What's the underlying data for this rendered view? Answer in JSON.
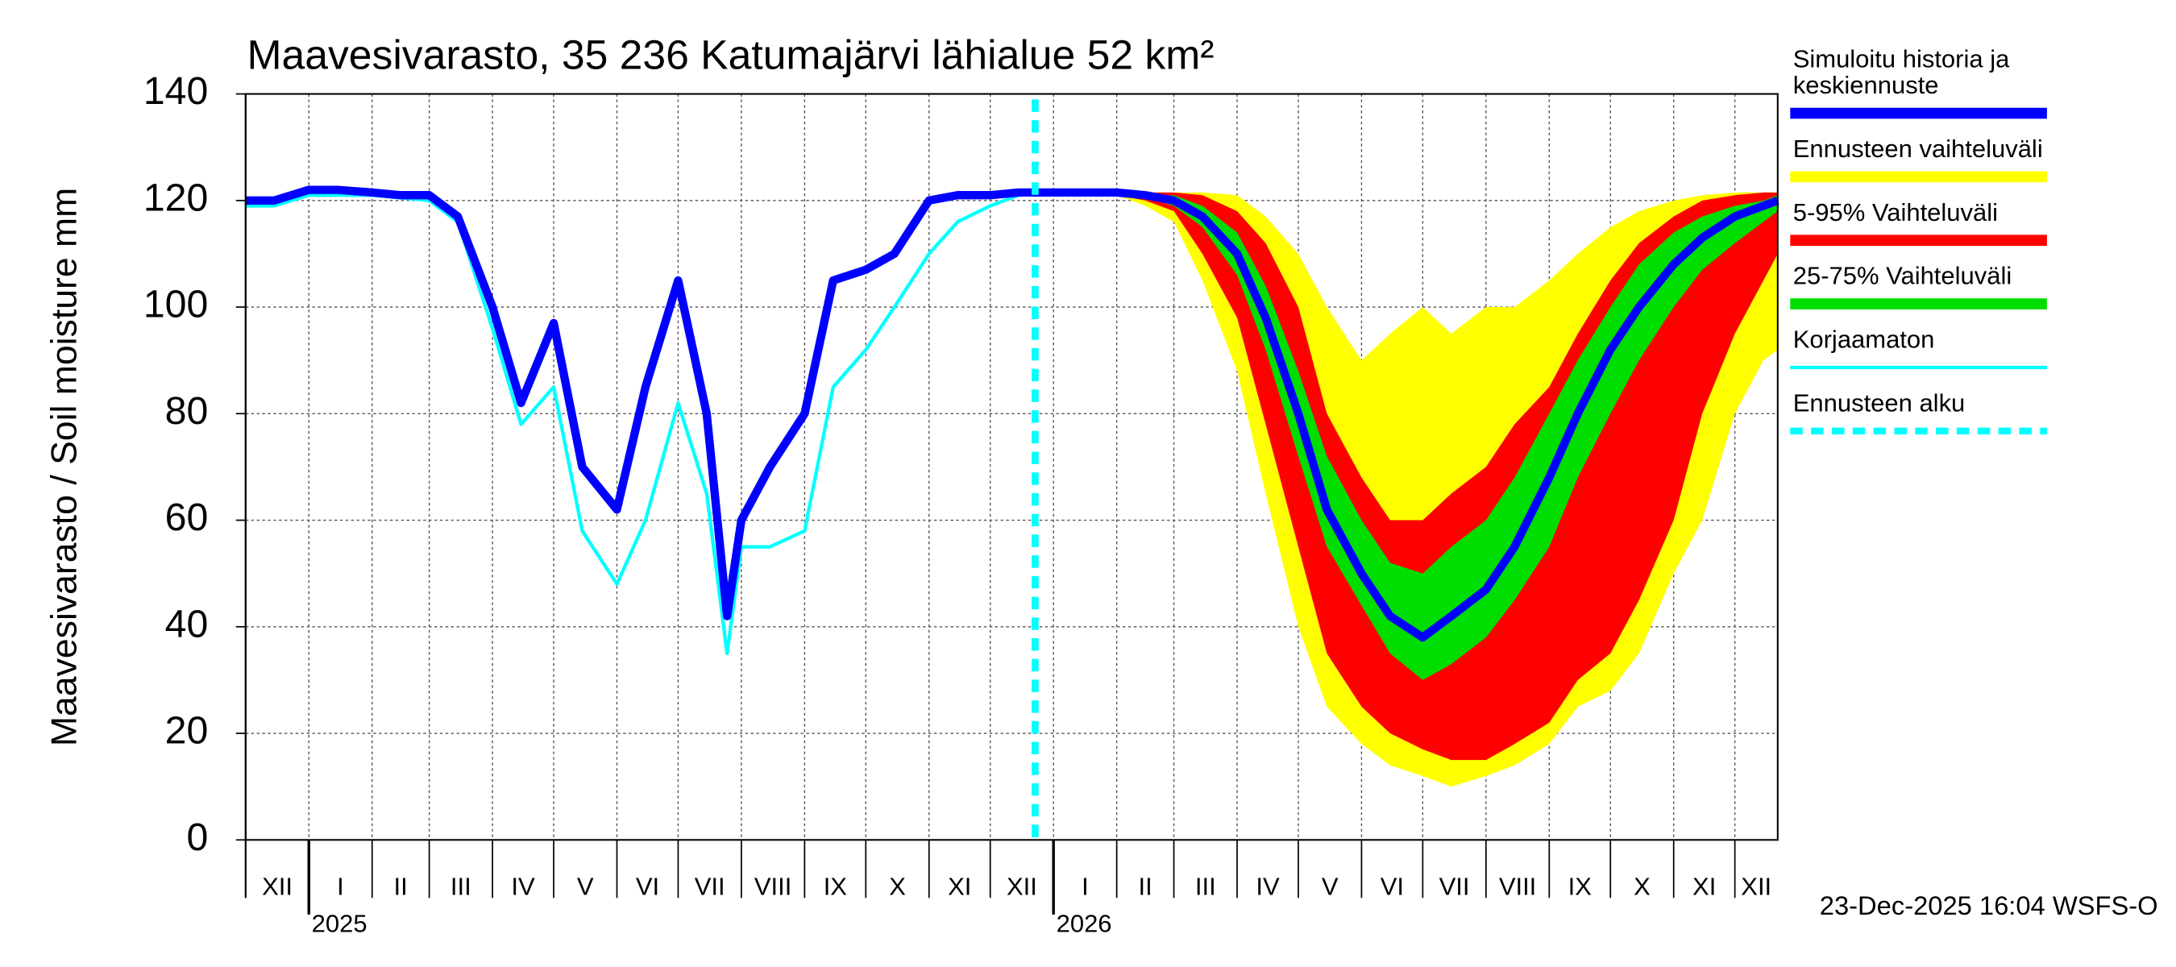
{
  "chart_data": {
    "type": "band-line",
    "title": "Maavesivarasto, 35 236 Katumajärvi lähialue 52 km²",
    "ylabel": "Maavesivarasto / Soil moisture   mm",
    "footer": "23-Dec-2025 16:04 WSFS-O",
    "ylim": [
      0,
      140
    ],
    "yticks": [
      0,
      20,
      40,
      60,
      80,
      100,
      120,
      140
    ],
    "xlim": [
      "2024-12-01",
      "2026-12-22"
    ],
    "grid": true,
    "month_ticks": [
      {
        "value": "2024-12-01",
        "label": "XII"
      },
      {
        "value": "2025-01-01",
        "label": "I"
      },
      {
        "value": "2025-02-01",
        "label": "II"
      },
      {
        "value": "2025-03-01",
        "label": "III"
      },
      {
        "value": "2025-04-01",
        "label": "IV"
      },
      {
        "value": "2025-05-01",
        "label": "V"
      },
      {
        "value": "2025-06-01",
        "label": "VI"
      },
      {
        "value": "2025-07-01",
        "label": "VII"
      },
      {
        "value": "2025-08-01",
        "label": "VIII"
      },
      {
        "value": "2025-09-01",
        "label": "IX"
      },
      {
        "value": "2025-10-01",
        "label": "X"
      },
      {
        "value": "2025-11-01",
        "label": "XI"
      },
      {
        "value": "2025-12-01",
        "label": "XII"
      },
      {
        "value": "2026-01-01",
        "label": "I"
      },
      {
        "value": "2026-02-01",
        "label": "II"
      },
      {
        "value": "2026-03-01",
        "label": "III"
      },
      {
        "value": "2026-04-01",
        "label": "IV"
      },
      {
        "value": "2026-05-01",
        "label": "V"
      },
      {
        "value": "2026-06-01",
        "label": "VI"
      },
      {
        "value": "2026-07-01",
        "label": "VII"
      },
      {
        "value": "2026-08-01",
        "label": "VIII"
      },
      {
        "value": "2026-09-01",
        "label": "IX"
      },
      {
        "value": "2026-10-01",
        "label": "X"
      },
      {
        "value": "2026-11-01",
        "label": "XI"
      },
      {
        "value": "2026-12-01",
        "label": "XII"
      }
    ],
    "year_ticks": [
      {
        "value": "2025-01-01",
        "label": "2025"
      },
      {
        "value": "2026-01-01",
        "label": "2026"
      }
    ],
    "x": [
      "2024-12-01",
      "2024-12-15",
      "2025-01-01",
      "2025-01-15",
      "2025-02-01",
      "2025-02-15",
      "2025-03-01",
      "2025-03-15",
      "2025-04-01",
      "2025-04-15",
      "2025-05-01",
      "2025-05-15",
      "2025-06-01",
      "2025-06-15",
      "2025-07-01",
      "2025-07-15",
      "2025-07-25",
      "2025-08-01",
      "2025-08-15",
      "2025-09-01",
      "2025-09-15",
      "2025-10-01",
      "2025-10-15",
      "2025-11-01",
      "2025-11-15",
      "2025-12-01",
      "2025-12-15",
      "2025-12-23",
      "2026-01-01",
      "2026-01-15",
      "2026-02-01",
      "2026-02-15",
      "2026-03-01",
      "2026-03-15",
      "2026-04-01",
      "2026-04-15",
      "2026-05-01",
      "2026-05-15",
      "2026-06-01",
      "2026-06-15",
      "2026-07-01",
      "2026-07-15",
      "2026-08-01",
      "2026-08-15",
      "2026-09-01",
      "2026-09-15",
      "2026-10-01",
      "2026-10-15",
      "2026-11-01",
      "2026-11-15",
      "2026-12-01",
      "2026-12-15",
      "2026-12-22"
    ],
    "bands": [
      {
        "name": "Ennusteen vaihteluväli",
        "color": "#ffff00",
        "low": [
          null,
          null,
          null,
          null,
          null,
          null,
          null,
          null,
          null,
          null,
          null,
          null,
          null,
          null,
          null,
          null,
          null,
          null,
          null,
          null,
          null,
          null,
          null,
          null,
          null,
          null,
          null,
          121.5,
          121.5,
          121.5,
          121,
          119,
          116,
          105,
          88,
          65,
          40,
          25,
          18,
          14,
          12,
          10,
          12,
          14,
          18,
          25,
          28,
          35,
          50,
          60,
          80,
          90,
          92
        ],
        "high": [
          null,
          null,
          null,
          null,
          null,
          null,
          null,
          null,
          null,
          null,
          null,
          null,
          null,
          null,
          null,
          null,
          null,
          null,
          null,
          null,
          null,
          null,
          null,
          null,
          null,
          null,
          null,
          121.5,
          121.5,
          121.5,
          121.5,
          121.5,
          121.5,
          121.5,
          121,
          117,
          110,
          100,
          90,
          95,
          100,
          95,
          100,
          100,
          105,
          110,
          115,
          118,
          120,
          121,
          121.5,
          121.5,
          121.5
        ]
      },
      {
        "name": "5-95% Vaihteluväli",
        "color": "#ff0000",
        "low": [
          null,
          null,
          null,
          null,
          null,
          null,
          null,
          null,
          null,
          null,
          null,
          null,
          null,
          null,
          null,
          null,
          null,
          null,
          null,
          null,
          null,
          null,
          null,
          null,
          null,
          null,
          null,
          121.5,
          121.5,
          121.5,
          121,
          120,
          118,
          110,
          98,
          78,
          55,
          35,
          25,
          20,
          17,
          15,
          15,
          18,
          22,
          30,
          35,
          45,
          60,
          80,
          95,
          105,
          110
        ],
        "high": [
          null,
          null,
          null,
          null,
          null,
          null,
          null,
          null,
          null,
          null,
          null,
          null,
          null,
          null,
          null,
          null,
          null,
          null,
          null,
          null,
          null,
          null,
          null,
          null,
          null,
          null,
          null,
          121.5,
          121.5,
          121.5,
          121.5,
          121.5,
          121.5,
          121,
          118,
          112,
          100,
          80,
          68,
          60,
          60,
          65,
          70,
          78,
          85,
          95,
          105,
          112,
          117,
          120,
          121,
          121.5,
          121.5
        ]
      },
      {
        "name": "25-75% Vaihteluväli",
        "color": "#00dd00",
        "low": [
          null,
          null,
          null,
          null,
          null,
          null,
          null,
          null,
          null,
          null,
          null,
          null,
          null,
          null,
          null,
          null,
          null,
          null,
          null,
          null,
          null,
          null,
          null,
          null,
          null,
          null,
          null,
          121.5,
          121.5,
          121.5,
          121.5,
          120.5,
          119,
          115,
          106,
          92,
          72,
          55,
          44,
          35,
          30,
          33,
          38,
          45,
          55,
          68,
          80,
          90,
          100,
          107,
          112,
          116,
          118
        ],
        "high": [
          null,
          null,
          null,
          null,
          null,
          null,
          null,
          null,
          null,
          null,
          null,
          null,
          null,
          null,
          null,
          null,
          null,
          null,
          null,
          null,
          null,
          null,
          null,
          null,
          null,
          null,
          null,
          121.5,
          121.5,
          121.5,
          121.5,
          121,
          121,
          119,
          114,
          104,
          88,
          72,
          60,
          52,
          50,
          55,
          60,
          68,
          80,
          90,
          100,
          108,
          114,
          117,
          119,
          120,
          121
        ]
      }
    ],
    "series": [
      {
        "name": "Simuloitu historia ja keskiennuste",
        "color": "#0000ff",
        "values": [
          120,
          120,
          122,
          122,
          121.5,
          121,
          121,
          117,
          100,
          82,
          97,
          70,
          62,
          85,
          105,
          80,
          42,
          60,
          70,
          80,
          105,
          107,
          110,
          120,
          121,
          121,
          121.5,
          121.5,
          121.5,
          121.5,
          121.5,
          121,
          120,
          117,
          110,
          98,
          80,
          62,
          50,
          42,
          38,
          42,
          47,
          55,
          68,
          80,
          92,
          100,
          108,
          113,
          117,
          119,
          120
        ]
      },
      {
        "name": "Korjaamaton",
        "color": "#00ffff",
        "values": [
          119,
          119,
          121,
          121,
          121,
          120.5,
          120,
          116,
          96,
          78,
          85,
          58,
          48,
          60,
          82,
          65,
          35,
          55,
          55,
          58,
          85,
          92,
          100,
          110,
          116,
          119,
          121,
          121.5,
          null,
          null,
          null,
          null,
          null,
          null,
          null,
          null,
          null,
          null,
          null,
          null,
          null,
          null,
          null,
          null,
          null,
          null,
          null,
          null,
          null,
          null,
          null,
          null,
          null
        ]
      }
    ],
    "forecast_start": {
      "name": "Ennusteen alku",
      "value": "2025-12-23",
      "color": "#00ffff"
    }
  }
}
